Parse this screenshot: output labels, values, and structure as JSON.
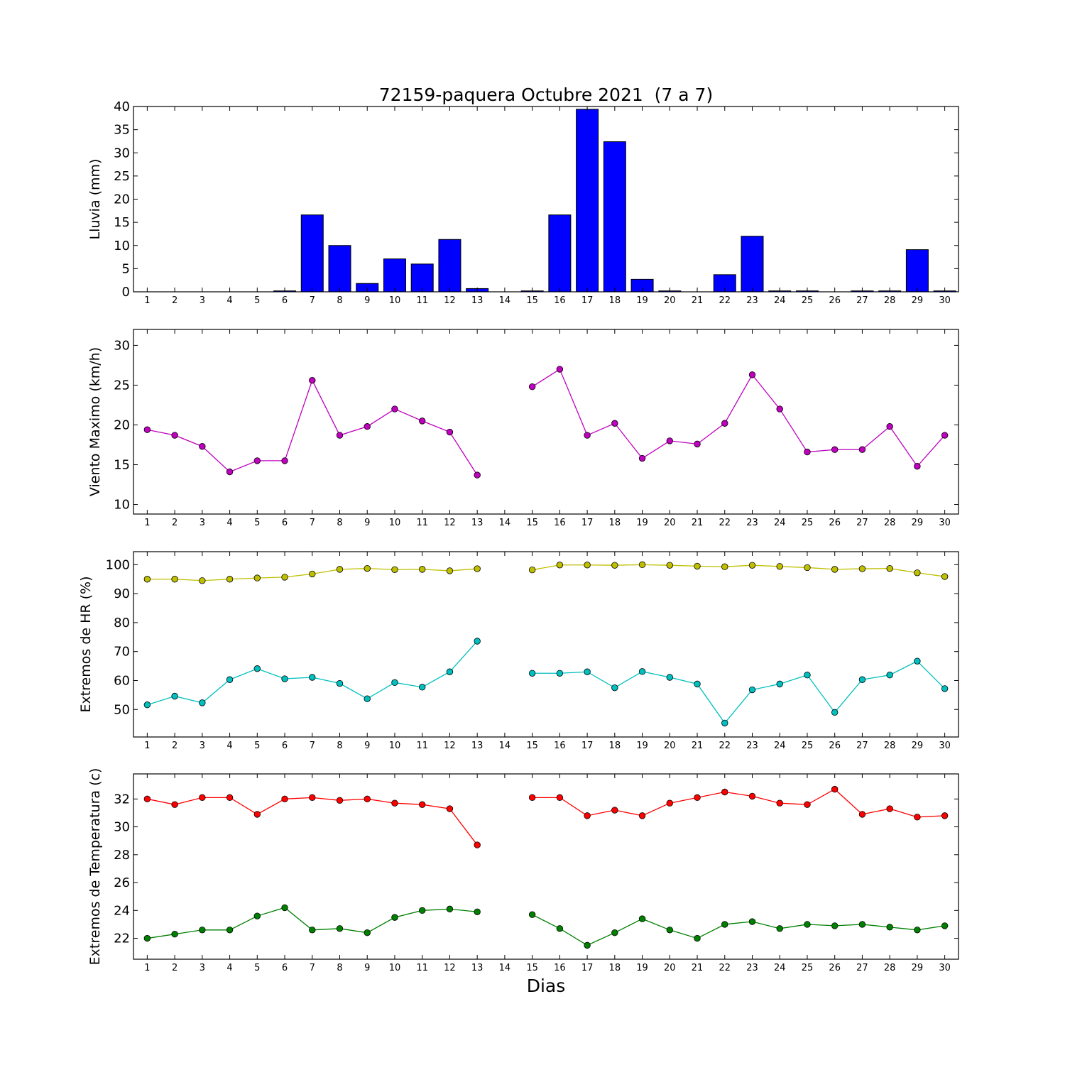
{
  "chart_data": {
    "title": "72159-paquera Octubre 2021  (7 a 7)",
    "xlabel": "Dias",
    "days": [
      1,
      2,
      3,
      4,
      5,
      6,
      7,
      8,
      9,
      10,
      11,
      12,
      13,
      14,
      15,
      16,
      17,
      18,
      19,
      20,
      21,
      22,
      23,
      24,
      25,
      26,
      27,
      28,
      29,
      30
    ],
    "panels": [
      {
        "type": "bar",
        "ylabel": "Lluvia (mm)",
        "ylim": [
          0,
          40
        ],
        "yticks": [
          0,
          5,
          10,
          15,
          20,
          25,
          30,
          35,
          40
        ],
        "series": [
          {
            "color": "#0000ff",
            "values": [
              0,
              0,
              0,
              0,
              0,
              0.2,
              16.6,
              10,
              1.8,
              7.1,
              6,
              11.3,
              0.7,
              0,
              0.2,
              16.6,
              39.4,
              32.4,
              2.7,
              0.2,
              0,
              3.7,
              12,
              0.2,
              0.2,
              0,
              0.2,
              0.2,
              9.1,
              0.2
            ]
          }
        ]
      },
      {
        "type": "line",
        "ylabel": "Viento Maximo (km/h)",
        "ylim": [
          8.8,
          32
        ],
        "yticks": [
          10,
          15,
          20,
          25,
          30
        ],
        "series": [
          {
            "color": "#bf00bf",
            "values": [
              19.4,
              18.7,
              17.3,
              14.1,
              15.5,
              15.5,
              25.6,
              18.7,
              19.8,
              22,
              20.5,
              19.1,
              13.7,
              null,
              24.8,
              27,
              18.7,
              20.2,
              15.8,
              18,
              17.6,
              20.2,
              26.3,
              22,
              16.6,
              16.9,
              16.9,
              19.8,
              14.8,
              18.7
            ]
          }
        ]
      },
      {
        "type": "line",
        "ylabel": "Extremos de HR (%)",
        "ylim": [
          40.5,
          104.5
        ],
        "yticks": [
          50,
          60,
          70,
          80,
          90,
          100
        ],
        "series": [
          {
            "color": "#bfbf00",
            "values": [
              95,
              95,
              94.5,
              95,
              95.4,
              95.7,
              96.8,
              98.4,
              98.7,
              98.3,
              98.4,
              97.9,
              98.6,
              null,
              98.2,
              99.9,
              99.9,
              99.8,
              100,
              99.8,
              99.5,
              99.3,
              99.8,
              99.4,
              99,
              98.4,
              98.6,
              98.7,
              97.2,
              95.9
            ]
          },
          {
            "color": "#00bfbf",
            "values": [
              51.6,
              54.6,
              52.3,
              60.3,
              64.1,
              60.6,
              61.1,
              59,
              53.7,
              59.3,
              57.7,
              63,
              73.6,
              null,
              62.5,
              62.5,
              63,
              57.5,
              63.1,
              61.1,
              58.8,
              45.3,
              56.8,
              58.8,
              61.9,
              49,
              60.3,
              61.9,
              66.7,
              57.2
            ]
          }
        ]
      },
      {
        "type": "line",
        "ylabel": "Extremos de Temperatura (c)",
        "ylim": [
          20.5,
          33.8
        ],
        "yticks": [
          22,
          24,
          26,
          28,
          30,
          32
        ],
        "series": [
          {
            "color": "#ff0000",
            "values": [
              32,
              31.6,
              32.1,
              32.1,
              30.9,
              32,
              32.1,
              31.9,
              32,
              31.7,
              31.6,
              31.3,
              28.7,
              null,
              32.1,
              32.1,
              30.8,
              31.2,
              30.8,
              31.7,
              32.1,
              32.5,
              32.2,
              31.7,
              31.6,
              32.7,
              30.9,
              31.3,
              30.7,
              30.8
            ]
          },
          {
            "color": "#008000",
            "values": [
              22,
              22.3,
              22.6,
              22.6,
              23.6,
              24.2,
              22.6,
              22.7,
              22.4,
              23.5,
              24,
              24.1,
              23.9,
              null,
              23.7,
              22.7,
              21.5,
              22.4,
              23.4,
              22.6,
              22,
              23,
              23.2,
              22.7,
              23,
              22.9,
              23,
              22.8,
              22.6,
              22.9
            ]
          }
        ]
      }
    ]
  }
}
